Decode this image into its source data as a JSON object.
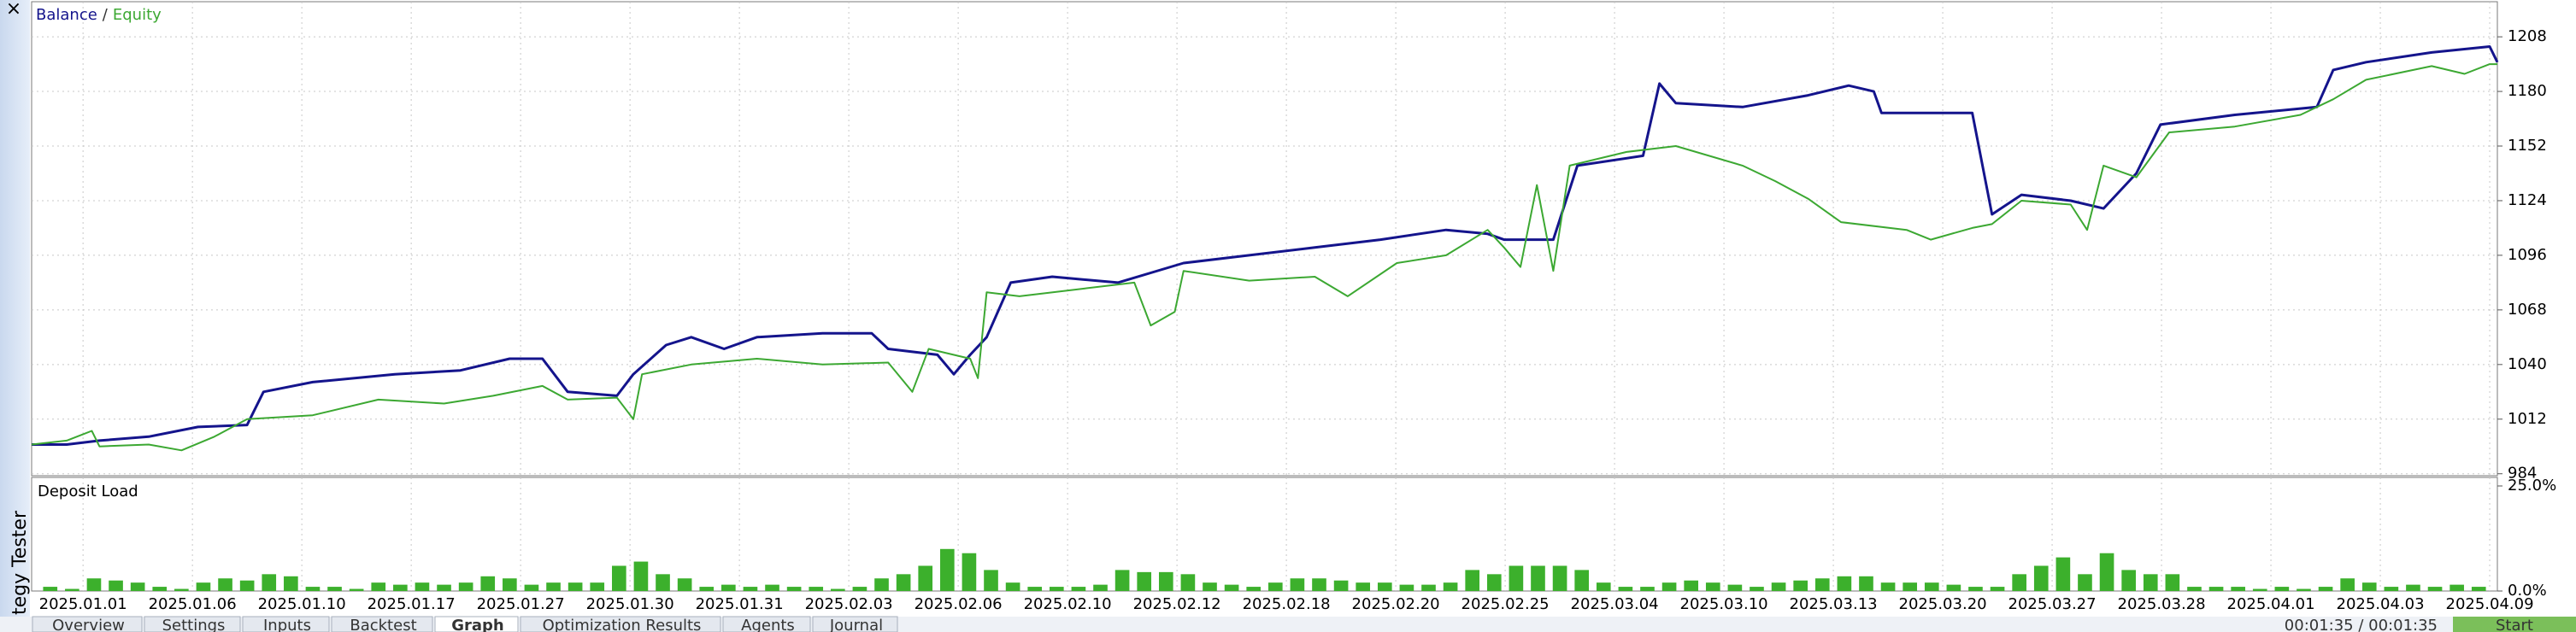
{
  "window": {
    "close": "×",
    "panel_title": "Strategy Tester",
    "tabs": [
      "Overview",
      "Settings",
      "Inputs",
      "Backtest",
      "Graph",
      "Optimization Results",
      "Agents",
      "Journal"
    ],
    "active_tab": 4,
    "timer": "00:01:35 / 00:01:35",
    "start_button": "Start"
  },
  "chart_data": [
    {
      "type": "line",
      "legend_separator": "/",
      "grid": true,
      "xlim": [
        -0.47,
        22.07
      ],
      "ylim": [
        983,
        1226
      ],
      "yticks": [
        984,
        1012,
        1040,
        1068,
        1096,
        1124,
        1152,
        1180,
        1208
      ],
      "xticks": [
        {
          "value": 0,
          "label": "2025.01.01"
        },
        {
          "value": 1,
          "label": "2025.01.06"
        },
        {
          "value": 2,
          "label": "2025.01.10"
        },
        {
          "value": 3,
          "label": "2025.01.17"
        },
        {
          "value": 4,
          "label": "2025.01.27"
        },
        {
          "value": 5,
          "label": "2025.01.30"
        },
        {
          "value": 6,
          "label": "2025.01.31"
        },
        {
          "value": 7,
          "label": "2025.02.03"
        },
        {
          "value": 8,
          "label": "2025.02.06"
        },
        {
          "value": 9,
          "label": "2025.02.10"
        },
        {
          "value": 10,
          "label": "2025.02.12"
        },
        {
          "value": 11,
          "label": "2025.02.18"
        },
        {
          "value": 12,
          "label": "2025.02.20"
        },
        {
          "value": 13,
          "label": "2025.02.25"
        },
        {
          "value": 14,
          "label": "2025.03.04"
        },
        {
          "value": 15,
          "label": "2025.03.10"
        },
        {
          "value": 16,
          "label": "2025.03.13"
        },
        {
          "value": 17,
          "label": "2025.03.20"
        },
        {
          "value": 18,
          "label": "2025.03.27"
        },
        {
          "value": 19,
          "label": "2025.03.28"
        },
        {
          "value": 20,
          "label": "2025.04.01"
        },
        {
          "value": 21,
          "label": "2025.04.03"
        },
        {
          "value": 22,
          "label": "2025.04.09"
        }
      ],
      "series": [
        {
          "name": "Balance",
          "color": "#14148c",
          "x": [
            -0.47,
            -0.15,
            0.15,
            0.6,
            1.05,
            1.5,
            1.65,
            2.1,
            2.85,
            3.45,
            3.9,
            4.2,
            4.43,
            4.88,
            5.03,
            5.33,
            5.56,
            5.86,
            6.16,
            6.76,
            7.21,
            7.36,
            7.81,
            7.96,
            8.11,
            8.26,
            8.48,
            8.86,
            9.46,
            10.06,
            10.66,
            11.26,
            11.86,
            12.46,
            12.84,
            12.99,
            13.44,
            13.66,
            14.26,
            14.41,
            14.56,
            15.17,
            15.77,
            16.14,
            16.37,
            16.44,
            17.27,
            17.45,
            17.72,
            18.17,
            18.47,
            18.77,
            18.99,
            19.67,
            20.42,
            20.57,
            20.87,
            21.47,
            22.0,
            22.07
          ],
          "values": [
            999,
            999,
            1001,
            1003,
            1008,
            1009,
            1026,
            1031,
            1035,
            1037,
            1043,
            1043,
            1026,
            1024,
            1035,
            1050,
            1054,
            1048,
            1054,
            1056,
            1056,
            1048,
            1045,
            1035,
            1045,
            1054,
            1082,
            1085,
            1082,
            1092,
            1096,
            1100,
            1104,
            1109,
            1107,
            1104,
            1104,
            1142,
            1147,
            1184,
            1174,
            1172,
            1178,
            1183,
            1180,
            1169,
            1169,
            1117,
            1127,
            1124,
            1120,
            1138,
            1163,
            1168,
            1172,
            1191,
            1195,
            1200,
            1203,
            1195
          ]
        },
        {
          "name": "Equity",
          "color": "#3ca832",
          "x": [
            -0.47,
            -0.15,
            0.08,
            0.15,
            0.6,
            0.9,
            1.2,
            1.5,
            2.1,
            2.7,
            3.3,
            3.75,
            4.2,
            4.43,
            4.88,
            5.03,
            5.11,
            5.56,
            6.16,
            6.76,
            7.36,
            7.58,
            7.73,
            8.11,
            8.18,
            8.26,
            8.56,
            9.16,
            9.61,
            9.76,
            9.98,
            10.06,
            10.66,
            11.26,
            11.56,
            12.01,
            12.46,
            12.84,
            12.99,
            13.14,
            13.29,
            13.44,
            13.59,
            14.11,
            14.56,
            15.17,
            15.47,
            15.77,
            16.07,
            16.67,
            16.89,
            17.27,
            17.45,
            17.72,
            18.17,
            18.32,
            18.47,
            18.77,
            19.07,
            19.67,
            20.27,
            20.57,
            20.87,
            21.47,
            21.77,
            22.0,
            22.07
          ],
          "values": [
            999,
            1001,
            1006,
            998,
            999,
            996,
            1003,
            1012,
            1014,
            1022,
            1020,
            1024,
            1029,
            1022,
            1023,
            1012,
            1035,
            1040,
            1043,
            1040,
            1041,
            1026,
            1048,
            1043,
            1033,
            1077,
            1075,
            1079,
            1082,
            1060,
            1067,
            1088,
            1083,
            1085,
            1075,
            1092,
            1096,
            1109,
            1100,
            1090,
            1132,
            1088,
            1142,
            1149,
            1152,
            1142,
            1134,
            1125,
            1113,
            1109,
            1104,
            1110,
            1112,
            1124,
            1122,
            1109,
            1142,
            1136,
            1159,
            1162,
            1168,
            1176,
            1186,
            1193,
            1189,
            1194,
            1194
          ]
        }
      ]
    },
    {
      "type": "bar",
      "title": "Deposit Load",
      "color": "#3cb02c",
      "grid": true,
      "xlim": [
        -0.47,
        22.07
      ],
      "ylim": [
        0,
        25
      ],
      "yticks": [
        {
          "value": 25,
          "label": "25.0%"
        },
        {
          "value": 0,
          "label": "0.0%"
        }
      ],
      "x": [
        -0.3,
        -0.1,
        0.1,
        0.3,
        0.5,
        0.7,
        0.9,
        1.1,
        1.3,
        1.5,
        1.7,
        1.9,
        2.1,
        2.3,
        2.5,
        2.7,
        2.9,
        3.1,
        3.3,
        3.5,
        3.7,
        3.9,
        4.1,
        4.3,
        4.5,
        4.7,
        4.9,
        5.1,
        5.3,
        5.5,
        5.7,
        5.9,
        6.1,
        6.3,
        6.5,
        6.7,
        6.9,
        7.1,
        7.3,
        7.5,
        7.7,
        7.9,
        8.1,
        8.3,
        8.5,
        8.7,
        8.9,
        9.1,
        9.3,
        9.5,
        9.7,
        9.9,
        10.1,
        10.3,
        10.5,
        10.7,
        10.9,
        11.1,
        11.3,
        11.5,
        11.7,
        11.9,
        12.1,
        12.3,
        12.5,
        12.7,
        12.9,
        13.1,
        13.3,
        13.5,
        13.7,
        13.9,
        14.1,
        14.3,
        14.5,
        14.7,
        14.9,
        15.1,
        15.3,
        15.5,
        15.7,
        15.9,
        16.1,
        16.3,
        16.5,
        16.7,
        16.9,
        17.1,
        17.3,
        17.5,
        17.7,
        17.9,
        18.1,
        18.3,
        18.5,
        18.7,
        18.9,
        19.1,
        19.3,
        19.5,
        19.7,
        19.9,
        20.1,
        20.3,
        20.5,
        20.7,
        20.9,
        21.1,
        21.3,
        21.5,
        21.7,
        21.9
      ],
      "values": [
        1,
        0.5,
        3,
        2.5,
        2,
        1,
        0.5,
        2,
        3,
        2.5,
        4,
        3.5,
        1,
        1,
        0.5,
        2,
        1.5,
        2,
        1.5,
        2,
        3.5,
        3,
        1.5,
        2,
        2,
        2,
        6,
        7,
        4,
        3,
        1,
        1.5,
        1,
        1.5,
        1,
        1,
        0.5,
        1,
        3,
        4,
        6,
        10,
        9,
        5,
        2,
        1,
        1,
        1,
        1.5,
        5,
        4.5,
        4.5,
        4,
        2,
        1.5,
        1,
        2,
        3,
        3,
        2.5,
        2,
        2,
        1.5,
        1.5,
        2,
        5,
        4,
        6,
        6,
        6,
        5,
        2,
        1,
        1,
        2,
        2.5,
        2,
        1.5,
        1,
        2,
        2.5,
        3,
        3.5,
        3.5,
        2,
        2,
        2,
        1.5,
        1,
        1,
        4,
        6,
        8,
        4,
        9,
        5,
        4,
        4,
        1,
        1,
        1,
        0.5,
        1,
        0.5,
        1,
        3,
        2,
        1,
        1.5,
        1,
        1.5,
        1
      ]
    }
  ]
}
